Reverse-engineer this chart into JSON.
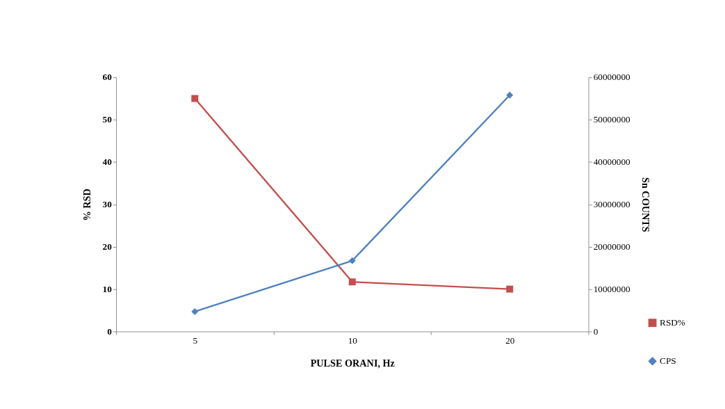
{
  "chart_data": {
    "type": "line",
    "xlabel": "PULSE ORANI, Hz",
    "ylabel": "% RSD",
    "y2label": "Sn  COUNTS",
    "categories": [
      "5",
      "10",
      "20"
    ],
    "series": [
      {
        "name": "RSD%",
        "color": "#c0504d",
        "marker": "square",
        "values": [
          55,
          11.7,
          10.0
        ]
      },
      {
        "name": "CPS",
        "color": "#4f81bd",
        "marker": "diamond",
        "axis": "y2",
        "values": [
          4700000,
          16700000,
          55800000
        ]
      }
    ],
    "ylim": [
      0,
      60
    ],
    "yticks": [
      0,
      10,
      20,
      30,
      40,
      50,
      60
    ],
    "y2lim": [
      0,
      60000000
    ],
    "y2ticks": [
      0,
      10000000,
      20000000,
      30000000,
      40000000,
      50000000,
      60000000
    ],
    "grid": false,
    "legend": "bottom right",
    "line_style": "solid"
  }
}
